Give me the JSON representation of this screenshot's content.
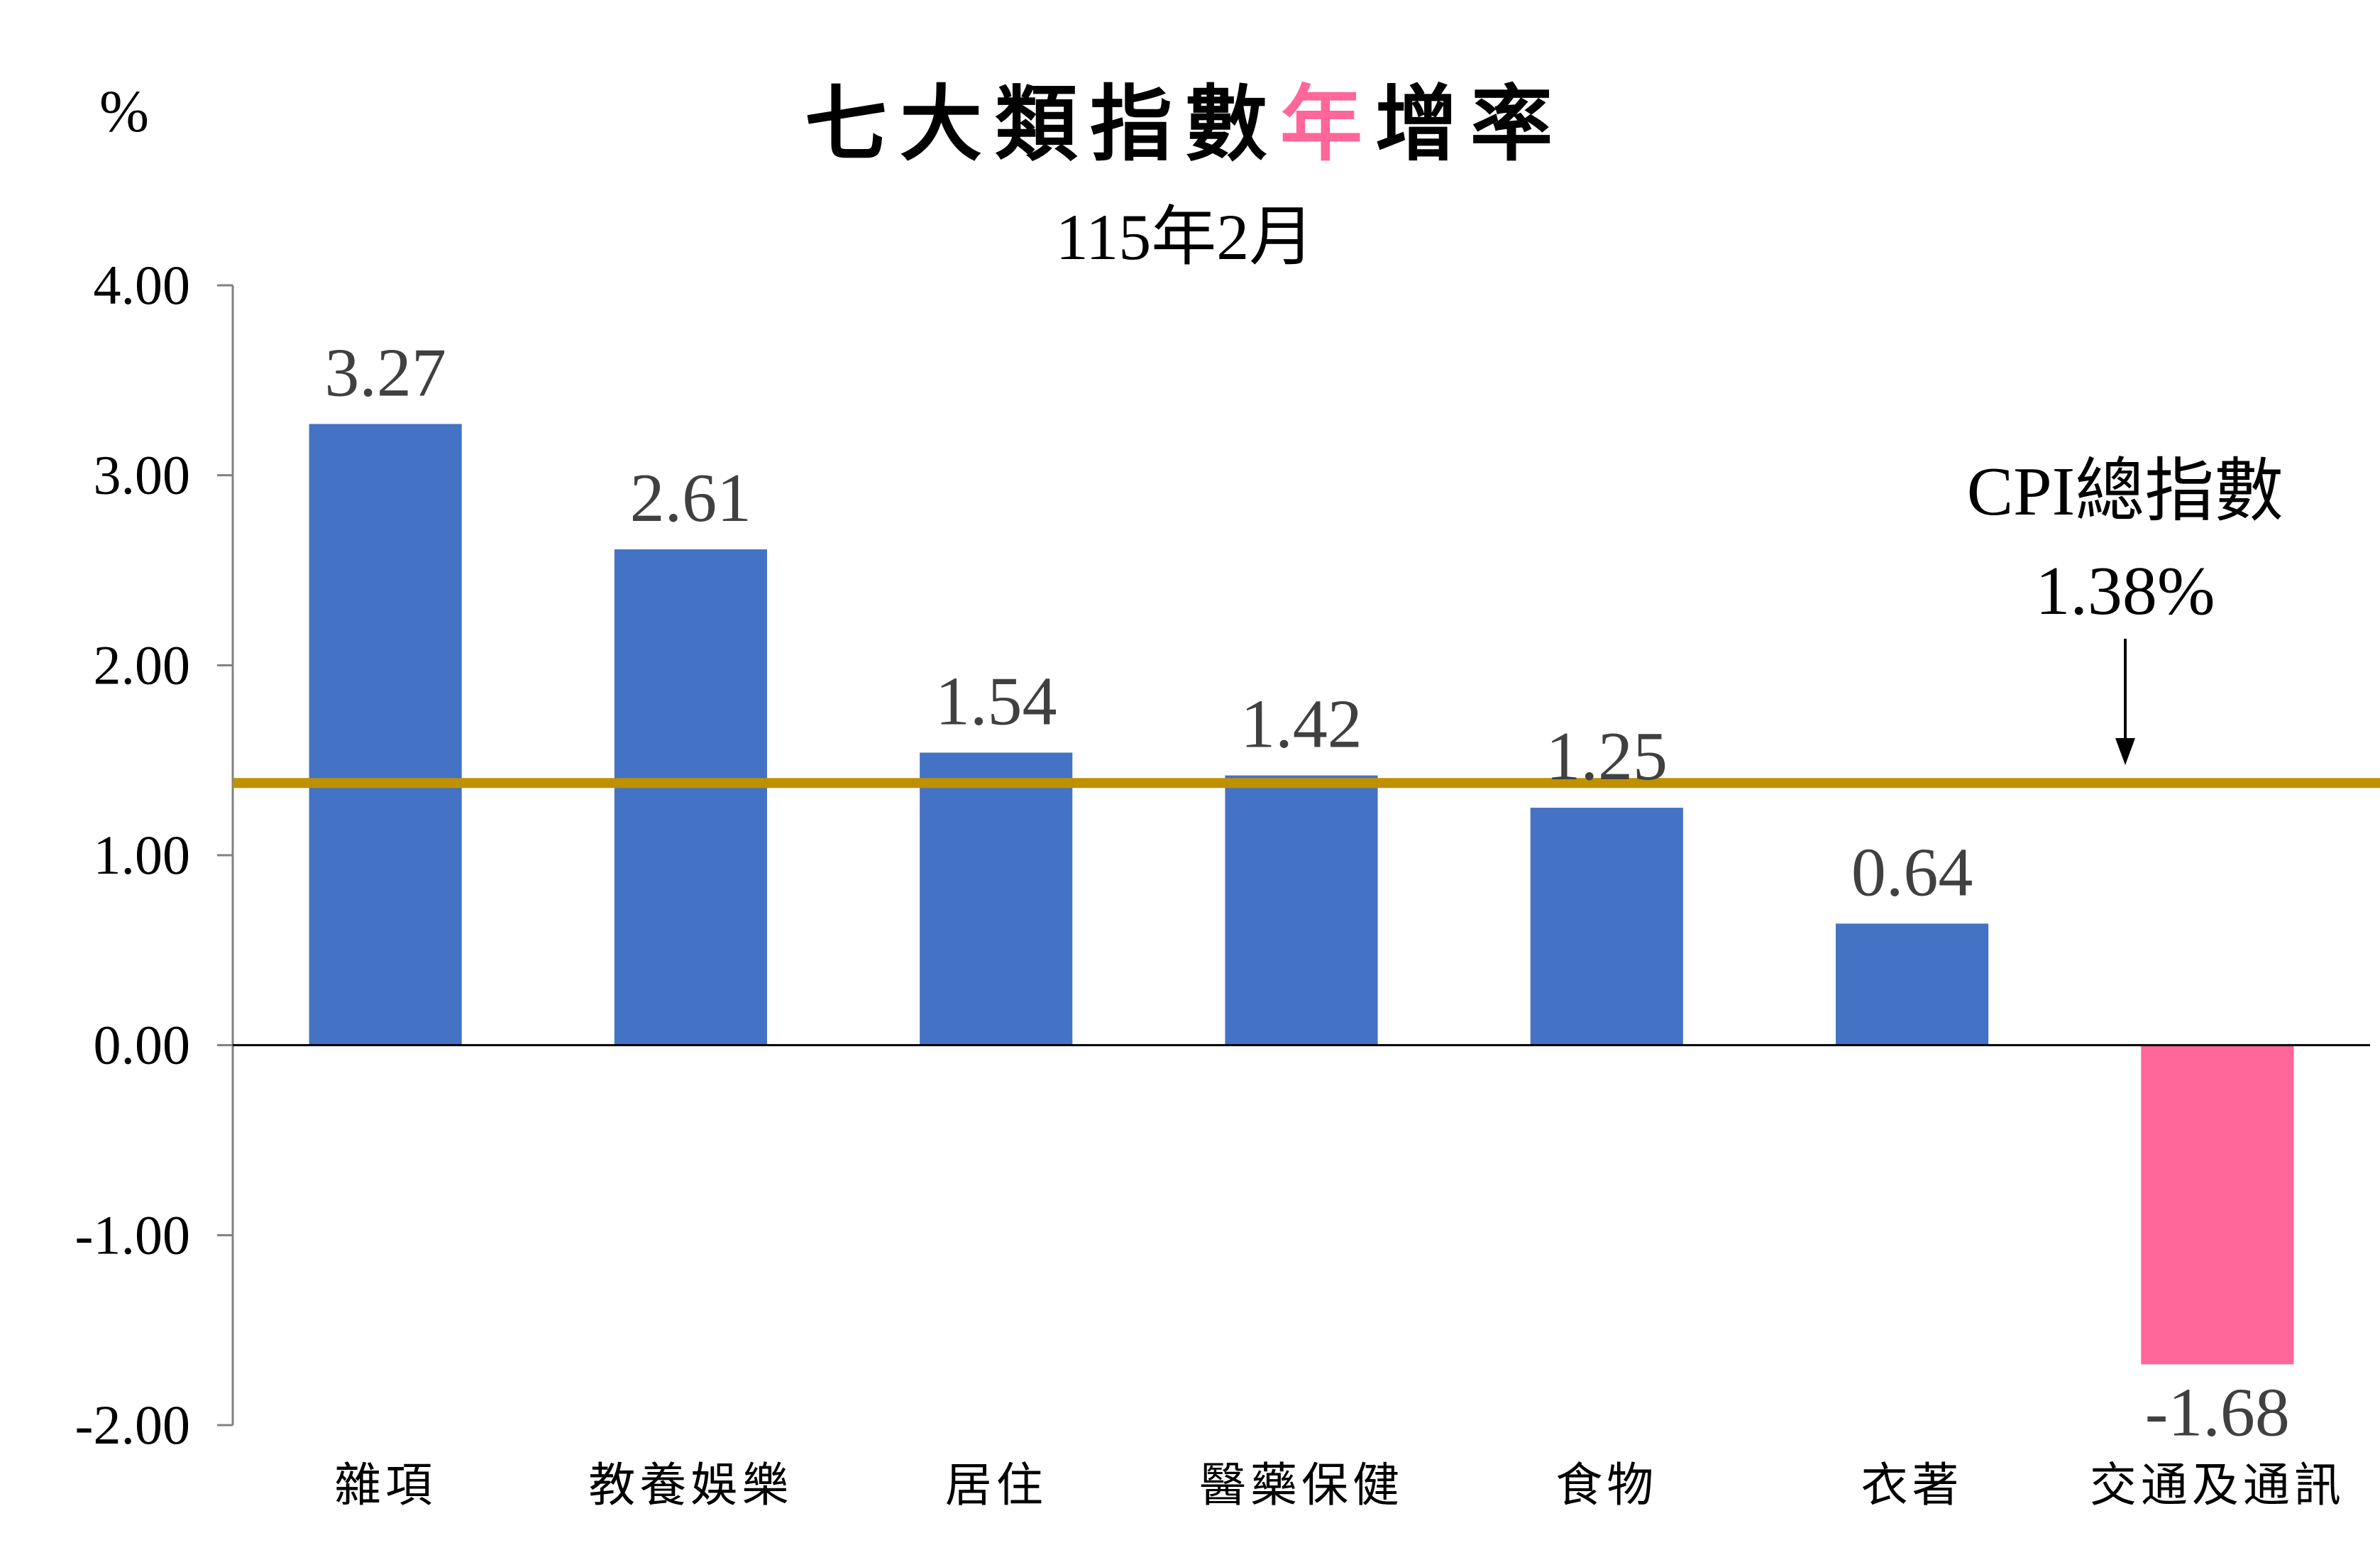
{
  "chart_data": {
    "type": "bar",
    "title_parts": [
      "七大類指數",
      "年",
      "增率"
    ],
    "subtitle": "115年2月",
    "ylabel": "%",
    "ylim": [
      -2,
      4
    ],
    "yticks": [
      "4.00",
      "3.00",
      "2.00",
      "1.00",
      "0.00",
      "-1.00",
      "-2.00"
    ],
    "yticks_values": [
      4,
      3,
      2,
      1,
      0,
      -1,
      -2
    ],
    "categories": [
      "雜項",
      "教養娛樂",
      "居住",
      "醫藥保健",
      "食物",
      "衣著",
      "交通及通訊"
    ],
    "values": [
      3.27,
      2.61,
      1.54,
      1.42,
      1.25,
      0.64,
      -1.68
    ],
    "value_labels": [
      "3.27",
      "2.61",
      "1.54",
      "1.42",
      "1.25",
      "0.64",
      "-1.68"
    ],
    "reference_line": {
      "value": 1.38,
      "label_line1": "CPI總指數",
      "label_line2": "1.38%"
    },
    "grid": false,
    "legend": "none",
    "colors": {
      "positive_bar": "#4472c4",
      "negative_bar": "#ff6699",
      "reference_line": "#bf9000",
      "title_highlight": "#ff6699",
      "data_label": "#404040"
    }
  }
}
